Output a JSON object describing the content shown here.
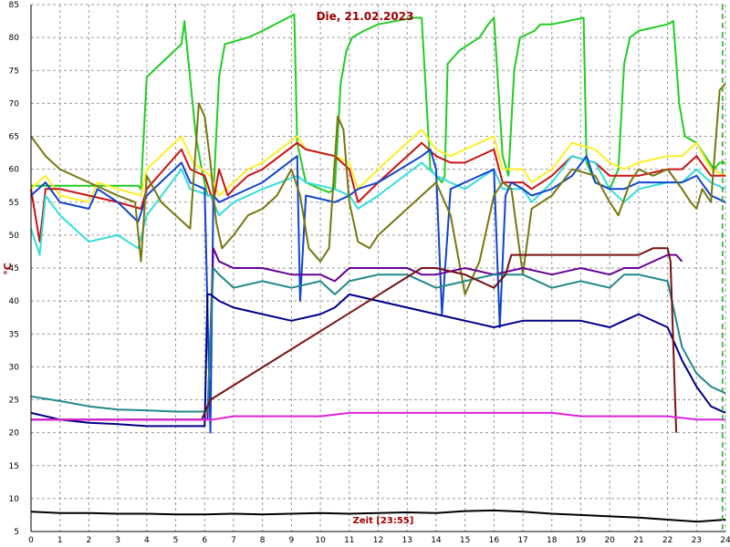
{
  "chart_data": {
    "type": "line",
    "title": "Die, 21.02.2023",
    "xlabel": "Zeit [23:55]",
    "ylabel": "°C",
    "xlim": [
      0,
      24
    ],
    "ylim": [
      5,
      85
    ],
    "xticks": [
      "0",
      "1",
      "2",
      "3",
      "4",
      "5",
      "6",
      "7",
      "8",
      "9",
      "10",
      "11",
      "12",
      "13",
      "14",
      "15",
      "16",
      "17",
      "18",
      "19",
      "20",
      "21",
      "22",
      "23",
      "24"
    ],
    "yticks": [
      "5",
      "10",
      "15",
      "20",
      "25",
      "30",
      "35",
      "40",
      "45",
      "50",
      "55",
      "60",
      "65",
      "70",
      "75",
      "80",
      "85"
    ],
    "grid": true,
    "current_time_marker": 23.9,
    "series": [
      {
        "color": "#22cc22",
        "x": [
          0,
          3.7,
          3.8,
          4,
          5.2,
          5.3,
          5.7,
          5.9,
          6.1,
          6.3,
          6.5,
          6.7,
          7.5,
          8,
          9.1,
          9.2,
          9.5,
          10,
          10.3,
          10.5,
          10.7,
          10.9,
          11.1,
          11.5,
          12,
          13.2,
          13.5,
          13.8,
          14.2,
          14.3,
          14.4,
          14.8,
          15.5,
          15.8,
          16.0,
          16.3,
          16.5,
          16.7,
          16.9,
          17.4,
          17.6,
          18,
          19.1,
          19.2,
          19.5,
          20,
          20.3,
          20.5,
          20.7,
          21,
          22,
          22.2,
          22.4,
          22.6,
          23,
          23.6,
          23.8,
          24
        ],
        "y": [
          57.5,
          57.5,
          57,
          74,
          79,
          82.5,
          65,
          60,
          56,
          56,
          74,
          79,
          80,
          81,
          83.5,
          64,
          58,
          57,
          56.5,
          57,
          73,
          78,
          80,
          81,
          82,
          83,
          83,
          60,
          58,
          59,
          76,
          78,
          80,
          82,
          83,
          62,
          59,
          75,
          80,
          81,
          82,
          82,
          83,
          61,
          58,
          57,
          60,
          76,
          80,
          81,
          82,
          82.5,
          70,
          65,
          64,
          60,
          61,
          61
        ]
      },
      {
        "color": "#ffee22",
        "x": [
          0,
          0.5,
          1,
          2,
          2.3,
          3,
          3.8,
          4,
          5.2,
          5.6,
          6.2,
          6.5,
          7,
          7.5,
          8,
          9.2,
          9.5,
          10.5,
          11,
          11.3,
          12,
          13.5,
          14,
          14.5,
          15,
          16,
          16.3,
          17,
          17.3,
          18,
          18.7,
          19.5,
          20,
          20.5,
          21,
          22,
          22.5,
          23,
          23.5,
          24
        ],
        "y": [
          57,
          59,
          56,
          55,
          58,
          57,
          56,
          60,
          65,
          61,
          59,
          56,
          58,
          60,
          61,
          65,
          63,
          62,
          61,
          57,
          60,
          66,
          63,
          62,
          63,
          65,
          60,
          60,
          58,
          60,
          64,
          63,
          61,
          60,
          61,
          62,
          62,
          64,
          60,
          59
        ]
      },
      {
        "color": "#cc1111",
        "x": [
          0,
          0.3,
          0.5,
          1,
          2,
          3,
          3.8,
          4,
          5.2,
          5.5,
          6,
          6.3,
          6.5,
          6.8,
          7,
          7.5,
          8,
          9.2,
          9.5,
          10.5,
          11,
          11.3,
          12,
          13.5,
          14,
          14.5,
          15,
          16,
          16.3,
          17,
          17.3,
          18,
          18.7,
          19.5,
          20,
          20.5,
          21,
          22,
          22.5,
          23,
          23.5,
          24
        ],
        "y": [
          57,
          49,
          57,
          57,
          56,
          55,
          54,
          57,
          63,
          60,
          59,
          55,
          60,
          56,
          57,
          59,
          60,
          64,
          63,
          62,
          60,
          55,
          58,
          64,
          62,
          61,
          61,
          63,
          58,
          58,
          57,
          59,
          62,
          61,
          59,
          59,
          59,
          60,
          60,
          62,
          59,
          59
        ]
      },
      {
        "color": "#33dddd",
        "x": [
          0,
          0.3,
          0.5,
          1,
          2,
          3,
          3.7,
          4,
          5.2,
          5.5,
          6.2,
          6.5,
          7,
          8,
          9.2,
          9.5,
          10.5,
          11,
          11.3,
          12,
          13.5,
          14,
          14.5,
          15,
          16,
          16.3,
          17,
          17.3,
          18,
          18.7,
          19.5,
          20,
          20.5,
          21,
          22,
          22.5,
          23,
          23.5,
          24
        ],
        "y": [
          51,
          47,
          56,
          53,
          49,
          50,
          48,
          53,
          60,
          57,
          56,
          53,
          55,
          57,
          59,
          58,
          57,
          56,
          54,
          56,
          61,
          59,
          58,
          57,
          60,
          57,
          57,
          55,
          58,
          62,
          61,
          57,
          55,
          57,
          58,
          58,
          60,
          58,
          57
        ]
      },
      {
        "color": "#1144cc",
        "x": [
          0,
          0.5,
          1,
          2,
          2.3,
          3,
          3.7,
          4,
          5.2,
          5.5,
          6.0,
          6.2,
          6.3,
          6.5,
          7,
          8,
          9.2,
          9.3,
          9.5,
          10.5,
          11,
          11.3,
          12,
          13.5,
          13.8,
          14.0,
          14.2,
          14.5,
          15,
          16,
          16.2,
          16.4,
          16.6,
          17,
          17.3,
          18,
          18.7,
          19.2,
          19.5,
          20,
          20.5,
          21,
          22,
          22.5,
          23,
          23.5,
          24
        ],
        "y": [
          56,
          58,
          55,
          54,
          57,
          55,
          52,
          56,
          61,
          58,
          57,
          20,
          56,
          55,
          56,
          58,
          62,
          40,
          56,
          55,
          56,
          57,
          58,
          62,
          63,
          60,
          38,
          57,
          58,
          60,
          36,
          56,
          58,
          57,
          56,
          57,
          59,
          62,
          58,
          57,
          57,
          58,
          58,
          58,
          59,
          56,
          55
        ]
      },
      {
        "color": "#777711",
        "x": [
          0,
          0.5,
          1,
          2,
          3,
          3.6,
          3.8,
          4,
          4.5,
          5,
          5.5,
          5.8,
          6.0,
          6.2,
          6.4,
          6.6,
          7,
          7.5,
          8,
          8.5,
          9.0,
          9.3,
          9.6,
          10,
          10.3,
          10.6,
          10.8,
          11.0,
          11.3,
          11.7,
          12,
          13,
          13.5,
          14,
          14.5,
          15,
          15.5,
          16,
          16.3,
          16.6,
          17,
          17.3,
          18,
          18.7,
          19.5,
          20,
          20.3,
          20.7,
          21,
          21.5,
          22,
          22.5,
          22.8,
          23,
          23.2,
          23.5,
          23.8,
          24
        ],
        "y": [
          65,
          62,
          60,
          58,
          56,
          55,
          46,
          59,
          55,
          53,
          51,
          70,
          68,
          61,
          52,
          48,
          50,
          53,
          54,
          56,
          60,
          56,
          48,
          46,
          48,
          68,
          66,
          55,
          49,
          48,
          50,
          54,
          56,
          58,
          53,
          41,
          46,
          56,
          58,
          57,
          44,
          54,
          56,
          60,
          59,
          55,
          53,
          58,
          60,
          59,
          60,
          57,
          55,
          54,
          57,
          55,
          72,
          73
        ]
      },
      {
        "color": "#660099",
        "x": [
          0,
          5.9,
          6.1,
          6.3,
          6.5,
          7,
          8,
          9,
          10,
          10.5,
          11,
          12,
          13,
          13.5,
          14,
          15,
          16,
          17,
          18,
          19,
          20,
          20.5,
          21,
          22,
          22.3,
          22.5
        ],
        "y": [
          22,
          22,
          22,
          48,
          46,
          45,
          45,
          44,
          44,
          43,
          45,
          45,
          45,
          44,
          44,
          45,
          44,
          45,
          44,
          45,
          44,
          45,
          45,
          47,
          47,
          46
        ]
      },
      {
        "color": "#228888",
        "x": [
          0,
          1,
          2,
          3,
          4,
          5,
          5.9,
          6.1,
          6.3,
          6.5,
          7,
          8,
          9,
          10,
          10.5,
          11,
          12,
          13,
          14,
          15,
          16,
          17,
          18,
          19,
          20,
          20.5,
          21,
          22,
          22.5,
          23,
          23.5,
          24
        ],
        "y": [
          25.5,
          24.8,
          24,
          23.5,
          23.4,
          23.2,
          23.2,
          23.2,
          45,
          44,
          42,
          43,
          42,
          43,
          41,
          43,
          44,
          44,
          42,
          43,
          44,
          44,
          42,
          43,
          42,
          44,
          44,
          43,
          33,
          29,
          27,
          26
        ]
      },
      {
        "color": "#000088",
        "x": [
          0,
          1,
          2,
          3,
          4,
          5,
          5.9,
          6.0,
          6.1,
          6.2,
          6.5,
          7,
          8,
          9,
          10,
          10.5,
          11,
          12,
          13,
          14,
          15,
          16,
          17,
          18,
          19,
          20,
          20.5,
          21,
          22,
          22.5,
          23,
          23.5,
          24
        ],
        "y": [
          23,
          22,
          21.5,
          21.3,
          21,
          21,
          21,
          21,
          41,
          41,
          40,
          39,
          38,
          37,
          38,
          39,
          41,
          40,
          39,
          38,
          37,
          36,
          37,
          37,
          37,
          36,
          37,
          38,
          36,
          31,
          27,
          24,
          23
        ]
      },
      {
        "color": "#771111",
        "x": [
          0,
          5.9,
          6.1,
          6.2,
          13.5,
          14,
          15,
          16,
          16.4,
          16.6,
          17,
          20,
          21,
          21.5,
          22,
          22.1,
          22.3
        ],
        "y": [
          22,
          22,
          24,
          25,
          45,
          45,
          44,
          42,
          44,
          47,
          47,
          47,
          47,
          48,
          48,
          46,
          20
        ]
      },
      {
        "color": "#dd22dd",
        "x": [
          0,
          1,
          2,
          3,
          4,
          5,
          6,
          6.3,
          7,
          8,
          9,
          10,
          11,
          12,
          13,
          14,
          15,
          16,
          17,
          18,
          19,
          20,
          21,
          22,
          23,
          24
        ],
        "y": [
          22,
          22,
          22,
          22,
          22,
          22,
          22,
          22,
          22.5,
          22.5,
          22.5,
          22.5,
          23,
          23,
          23,
          23,
          23,
          23,
          23,
          23,
          22.5,
          22.5,
          22.5,
          22.5,
          22,
          22
        ]
      },
      {
        "color": "#000000",
        "x": [
          0,
          1,
          2,
          3,
          4,
          5,
          6,
          7,
          8,
          9,
          10,
          11,
          12,
          13,
          14,
          15,
          16,
          17,
          18,
          19,
          20,
          21,
          22,
          23,
          24
        ],
        "y": [
          8,
          7.8,
          7.8,
          7.7,
          7.7,
          7.6,
          7.6,
          7.7,
          7.6,
          7.7,
          7.8,
          7.7,
          7.8,
          7.9,
          7.8,
          8.1,
          8.2,
          8.0,
          7.7,
          7.5,
          7.3,
          7.1,
          6.8,
          6.5,
          6.8
        ]
      }
    ]
  }
}
